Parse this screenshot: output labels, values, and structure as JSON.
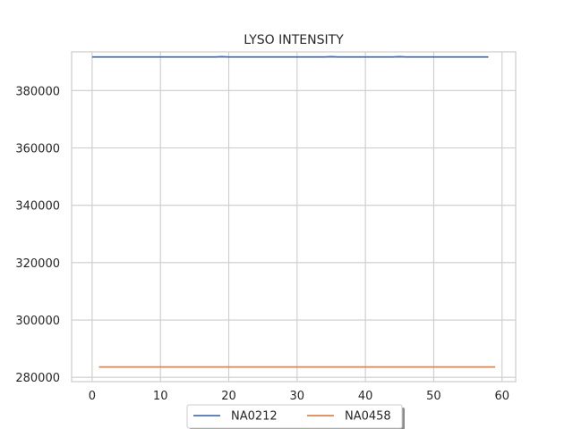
{
  "chart_data": {
    "type": "line",
    "title": "LYSO INTENSITY",
    "xlabel": "",
    "ylabel": "",
    "xlim": [
      -3,
      62
    ],
    "ylim": [
      278500,
      393500
    ],
    "xticks": [
      0,
      10,
      20,
      30,
      40,
      50,
      60
    ],
    "yticks": [
      280000,
      300000,
      320000,
      340000,
      360000,
      380000
    ],
    "grid": true,
    "legend_position": "bottom-center",
    "series": [
      {
        "name": "NA0212",
        "color": "#4c72b0",
        "x": [
          0,
          10,
          18,
          19,
          20,
          30,
          34,
          35,
          36,
          40,
          44,
          45,
          46,
          50,
          58
        ],
        "y": [
          391700,
          391700,
          391700,
          391800,
          391700,
          391700,
          391700,
          391800,
          391700,
          391700,
          391700,
          391800,
          391700,
          391700,
          391700
        ]
      },
      {
        "name": "NA0458",
        "color": "#dd8452",
        "x": [
          1,
          10,
          20,
          30,
          40,
          50,
          59
        ],
        "y": [
          283600,
          283600,
          283600,
          283600,
          283600,
          283600,
          283600
        ]
      }
    ]
  }
}
